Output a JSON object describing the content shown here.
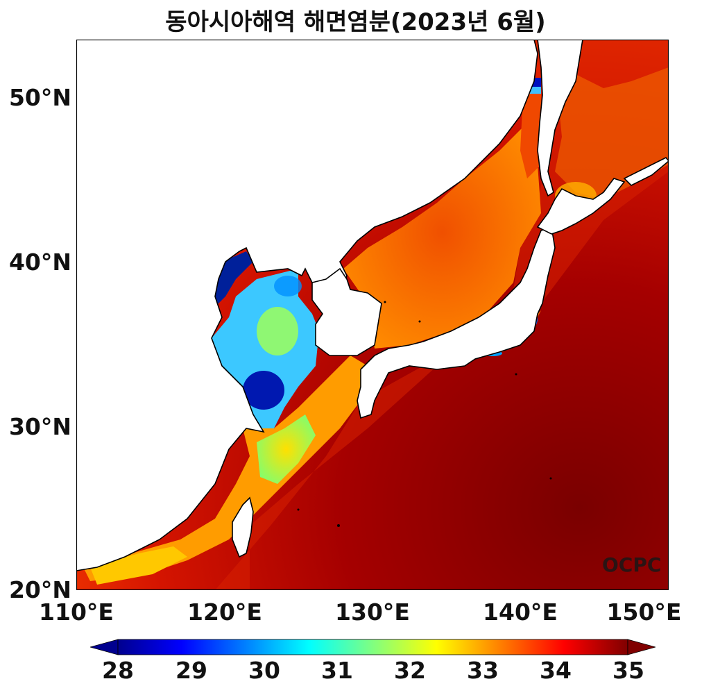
{
  "title": "동아시아해역 해면염분(2023년 6월)",
  "watermark": "OCPC",
  "lat_ticks": [
    "50°N",
    "40°N",
    "30°N",
    "20°N"
  ],
  "lon_ticks": [
    "110°E",
    "120°E",
    "130°E",
    "140°E",
    "150°E"
  ],
  "colorbar": {
    "ticks": [
      "28",
      "29",
      "30",
      "31",
      "32",
      "33",
      "34",
      "35"
    ],
    "colormap": "jet",
    "extend": "both",
    "min": 28,
    "max": 35
  },
  "map_extent": {
    "lon": [
      110,
      150
    ],
    "lat": [
      20,
      53.5
    ]
  },
  "colors": {
    "land": "#ffffff",
    "coast": "#000000",
    "high_salinity": "#7f0000",
    "low_salinity": "#00008f"
  }
}
